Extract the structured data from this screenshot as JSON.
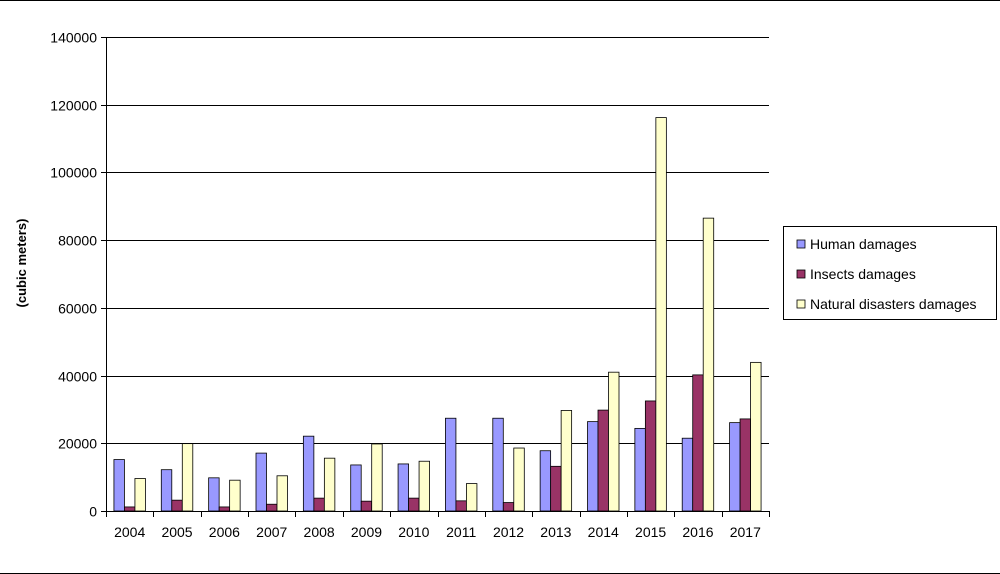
{
  "chart_data": {
    "type": "bar",
    "title": "",
    "xlabel": "",
    "ylabel": "(cubic meters)",
    "ylim": [
      0,
      140000
    ],
    "yticks": [
      0,
      20000,
      40000,
      60000,
      80000,
      100000,
      120000,
      140000
    ],
    "grid": "horizontal",
    "legend_position": "right",
    "categories": [
      "2004",
      "2005",
      "2006",
      "2007",
      "2008",
      "2009",
      "2010",
      "2011",
      "2012",
      "2013",
      "2014",
      "2015",
      "2016",
      "2017"
    ],
    "series": [
      {
        "name": "Human damages",
        "color": "#9999ff",
        "values": [
          15200,
          12200,
          9800,
          17100,
          22100,
          13600,
          13900,
          27400,
          27400,
          17800,
          26400,
          24400,
          21500,
          26100
        ]
      },
      {
        "name": "Insects damages",
        "color": "#993366",
        "values": [
          1200,
          3200,
          1200,
          2000,
          3800,
          2900,
          3800,
          3000,
          2500,
          13200,
          29800,
          32500,
          40200,
          27200
        ]
      },
      {
        "name": "Natural disasters damages",
        "color": "#ffffcc",
        "values": [
          9600,
          19900,
          9100,
          10400,
          15600,
          19800,
          14700,
          8100,
          18600,
          29700,
          41000,
          116200,
          86500,
          43900
        ]
      }
    ]
  }
}
